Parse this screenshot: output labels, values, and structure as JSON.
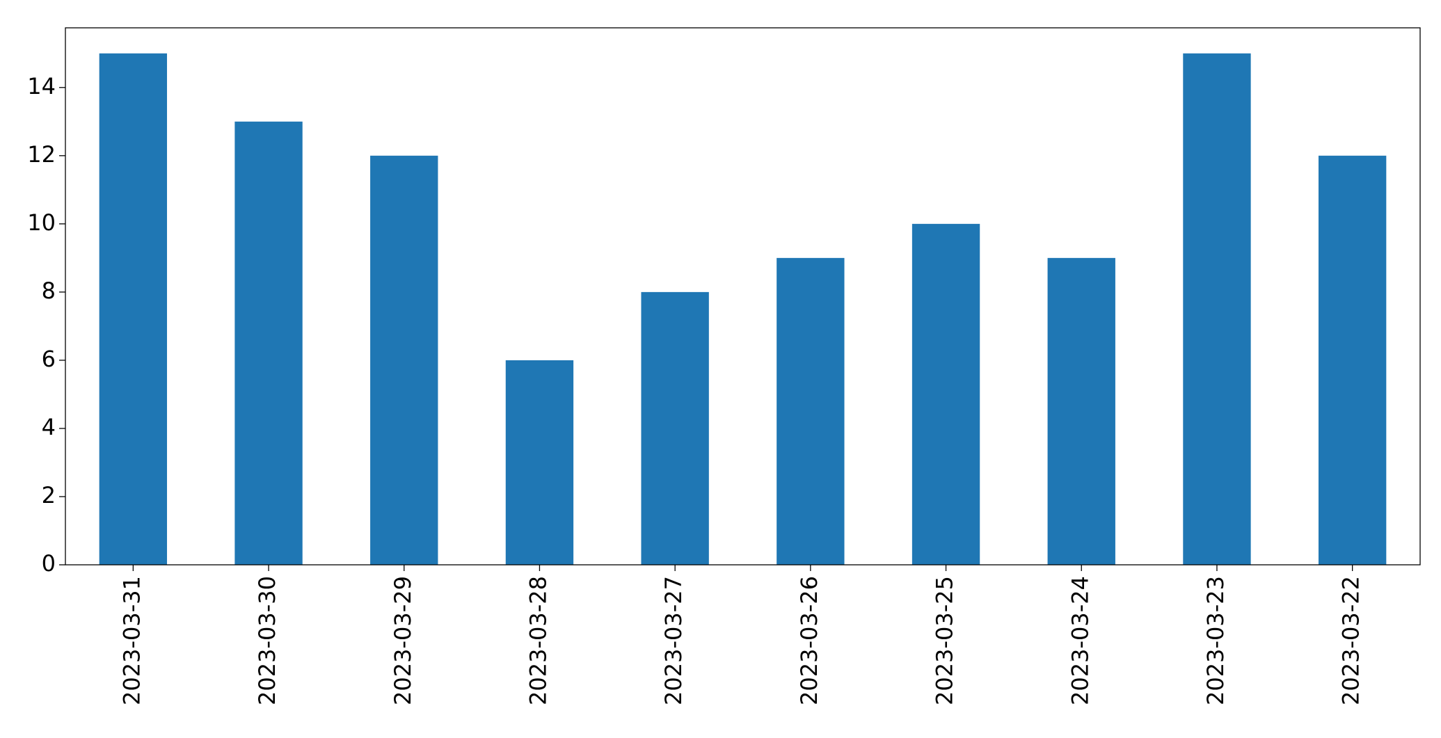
{
  "chart_data": {
    "type": "bar",
    "categories": [
      "2023-03-31",
      "2023-03-30",
      "2023-03-29",
      "2023-03-28",
      "2023-03-27",
      "2023-03-26",
      "2023-03-25",
      "2023-03-24",
      "2023-03-23",
      "2023-03-22"
    ],
    "values": [
      15,
      13,
      12,
      6,
      8,
      9,
      10,
      9,
      15,
      12
    ],
    "color": "#1f77b4",
    "ylim": [
      0,
      15.75
    ],
    "yticks": [
      0,
      2,
      4,
      6,
      8,
      10,
      12,
      14
    ],
    "grid": false
  }
}
